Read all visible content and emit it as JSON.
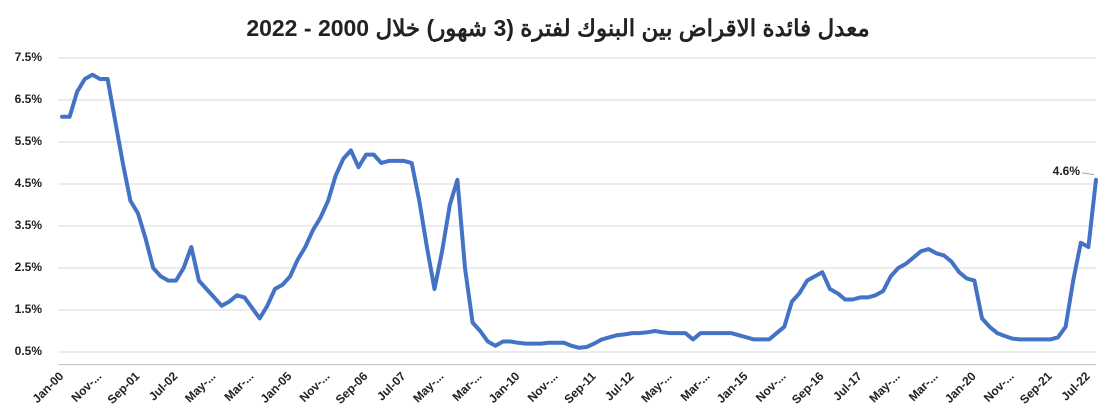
{
  "chart_data": {
    "type": "line",
    "title": "معدل فائدة الاقراض بين البنوك لفترة (3 شهور) خلال 2000 - 2022",
    "categories": [
      "Jan-00",
      null,
      null,
      null,
      null,
      "Nov-...",
      null,
      null,
      null,
      null,
      "Sep-01",
      null,
      null,
      null,
      null,
      "Jul-02",
      null,
      null,
      null,
      null,
      "May-...",
      null,
      null,
      null,
      null,
      "Mar-...",
      null,
      null,
      null,
      null,
      "Jan-05",
      null,
      null,
      null,
      null,
      "Nov-...",
      null,
      null,
      null,
      null,
      "Sep-06",
      null,
      null,
      null,
      null,
      "Jul-07",
      null,
      null,
      null,
      null,
      "May-...",
      null,
      null,
      null,
      null,
      "Mar-...",
      null,
      null,
      null,
      null,
      "Jan-10",
      null,
      null,
      null,
      null,
      "Nov-...",
      null,
      null,
      null,
      null,
      "Sep-11",
      null,
      null,
      null,
      null,
      "Jul-12",
      null,
      null,
      null,
      null,
      "May-...",
      null,
      null,
      null,
      null,
      "Mar-...",
      null,
      null,
      null,
      null,
      "Jan-15",
      null,
      null,
      null,
      null,
      "Nov-...",
      null,
      null,
      null,
      null,
      "Sep-16",
      null,
      null,
      null,
      null,
      "Jul-17",
      null,
      null,
      null,
      null,
      "May-...",
      null,
      null,
      null,
      null,
      "Mar-...",
      null,
      null,
      null,
      null,
      "Jan-20",
      null,
      null,
      null,
      null,
      "Nov-...",
      null,
      null,
      null,
      null,
      "Sep-21",
      null,
      null,
      null,
      null,
      "Jul-22",
      null
    ],
    "series": [
      {
        "color": "#4472c4",
        "values": [
          6.1,
          6.1,
          6.7,
          7.0,
          7.1,
          7.0,
          7.0,
          6.0,
          5.0,
          4.1,
          3.8,
          3.2,
          2.5,
          2.3,
          2.2,
          2.2,
          2.5,
          3.0,
          2.2,
          2.0,
          1.8,
          1.6,
          1.7,
          1.85,
          1.8,
          1.55,
          1.3,
          1.6,
          2.0,
          2.1,
          2.3,
          2.7,
          3.0,
          3.4,
          3.7,
          4.1,
          4.7,
          5.1,
          5.3,
          4.9,
          5.2,
          5.2,
          5.0,
          5.05,
          5.05,
          5.05,
          5.0,
          4.1,
          3.0,
          2.0,
          2.9,
          4.0,
          4.6,
          2.5,
          1.2,
          1.0,
          0.75,
          0.65,
          0.75,
          0.75,
          0.72,
          0.7,
          0.7,
          0.7,
          0.72,
          0.72,
          0.72,
          0.65,
          0.6,
          0.62,
          0.7,
          0.8,
          0.85,
          0.9,
          0.92,
          0.95,
          0.95,
          0.97,
          1.0,
          0.97,
          0.95,
          0.95,
          0.95,
          0.8,
          0.95,
          0.95,
          0.95,
          0.95,
          0.95,
          0.9,
          0.85,
          0.8,
          0.8,
          0.8,
          0.95,
          1.1,
          1.7,
          1.9,
          2.2,
          2.3,
          2.4,
          2.0,
          1.9,
          1.75,
          1.75,
          1.8,
          1.8,
          1.85,
          1.95,
          2.3,
          2.5,
          2.6,
          2.75,
          2.9,
          2.95,
          2.85,
          2.8,
          2.65,
          2.4,
          2.25,
          2.2,
          1.3,
          1.1,
          0.95,
          0.88,
          0.82,
          0.8,
          0.8,
          0.8,
          0.8,
          0.8,
          0.85,
          1.1,
          2.2,
          3.1,
          3.0,
          4.6
        ],
        "value_labels": [
          null,
          null,
          null,
          null,
          null,
          null,
          null,
          null,
          null,
          null,
          null,
          null,
          null,
          null,
          null,
          null,
          null,
          null,
          null,
          null,
          null,
          null,
          null,
          null,
          null,
          null,
          null,
          null,
          null,
          null,
          null,
          null,
          null,
          null,
          null,
          null,
          null,
          null,
          null,
          null,
          null,
          null,
          null,
          null,
          null,
          null,
          null,
          null,
          null,
          null,
          null,
          null,
          null,
          null,
          null,
          null,
          null,
          null,
          null,
          null,
          null,
          null,
          null,
          null,
          null,
          null,
          null,
          null,
          null,
          null,
          null,
          null,
          null,
          null,
          null,
          null,
          null,
          null,
          null,
          null,
          null,
          null,
          null,
          null,
          null,
          null,
          null,
          null,
          null,
          null,
          null,
          null,
          null,
          null,
          null,
          null,
          null,
          null,
          null,
          null,
          null,
          null,
          null,
          null,
          null,
          null,
          null,
          null,
          null,
          null,
          null,
          null,
          null,
          null,
          null,
          null,
          null,
          null,
          null,
          null,
          null,
          null,
          null,
          null,
          null,
          null,
          null,
          null,
          null,
          null,
          null,
          null,
          null,
          null,
          null,
          null,
          "4.6%"
        ]
      }
    ],
    "ylim": [
      0.2,
      7.5
    ],
    "yticks": [
      {
        "value": 0.5,
        "label": "0.5%"
      },
      {
        "value": 1.5,
        "label": "1.5%"
      },
      {
        "value": 2.5,
        "label": "2.5%"
      },
      {
        "value": 3.5,
        "label": "3.5%"
      },
      {
        "value": 4.5,
        "label": "4.5%"
      },
      {
        "value": 5.5,
        "label": "5.5%"
      },
      {
        "value": 6.5,
        "label": "6.5%"
      },
      {
        "value": 7.5,
        "label": "7.5%"
      }
    ],
    "grid": true
  }
}
